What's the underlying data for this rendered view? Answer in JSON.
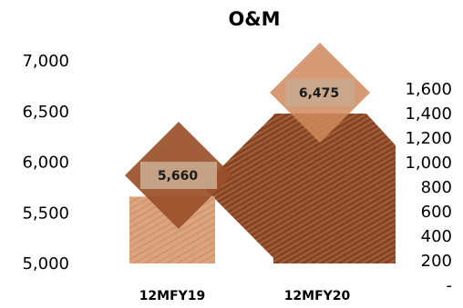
{
  "chart_data": {
    "type": "bar",
    "title": "O&M",
    "categories": [
      "12MFY19",
      "12MFY20"
    ],
    "series": [
      {
        "values": [
          5660,
          6475
        ],
        "data_labels": [
          "5,660",
          "6,475"
        ]
      }
    ],
    "ylim": [
      5000,
      7000
    ],
    "y_ticks": [
      "5,000",
      "5,500",
      "6,000",
      "6,500",
      "7,000"
    ],
    "y2_ticks": [
      "-",
      "200",
      "400",
      "600",
      "800",
      "1,000",
      "1,200",
      "1,400",
      "1,600"
    ],
    "grid": false,
    "legend": "none",
    "colors": {
      "bar_light": "#d9a07a",
      "bar_dark": "#8b4a2b",
      "label_box": "#c9a88e"
    }
  }
}
